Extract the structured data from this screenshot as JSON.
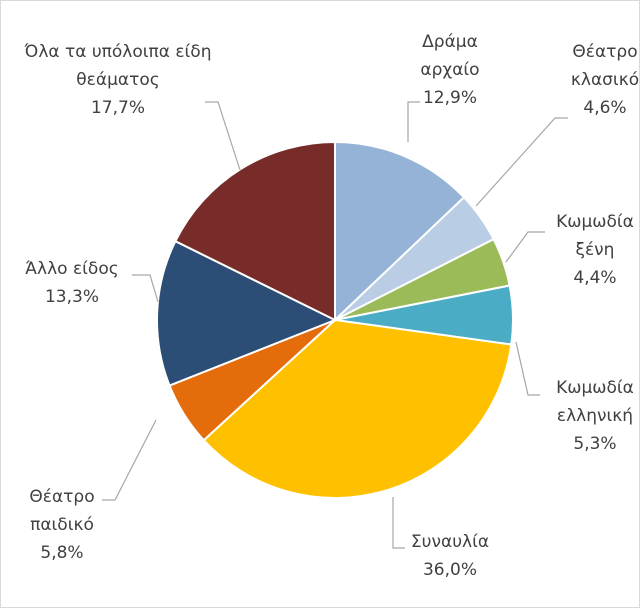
{
  "chart_data": {
    "type": "pie",
    "categories": [
      "Δράμα αρχαίο",
      "Θέατρο κλασικό",
      "Κωμωδία ξένη",
      "Κωμωδία ελληνική",
      "Συναυλία",
      "Θέατρο παιδικό",
      "Άλλο είδος",
      "Όλα τα υπόλοιπα είδη θεάματος"
    ],
    "values": [
      12.9,
      4.6,
      4.4,
      5.3,
      36.0,
      5.8,
      13.3,
      17.7
    ],
    "value_labels": [
      "12,9%",
      "4,6%",
      "4,4%",
      "5,3%",
      "36,0%",
      "5,8%",
      "13,3%",
      "17,7%"
    ],
    "colors": [
      "#95b3d7",
      "#b9cde5",
      "#9bbb59",
      "#4bacc6",
      "#ffc000",
      "#e46c0a",
      "#2c4d75",
      "#772c2a"
    ]
  }
}
